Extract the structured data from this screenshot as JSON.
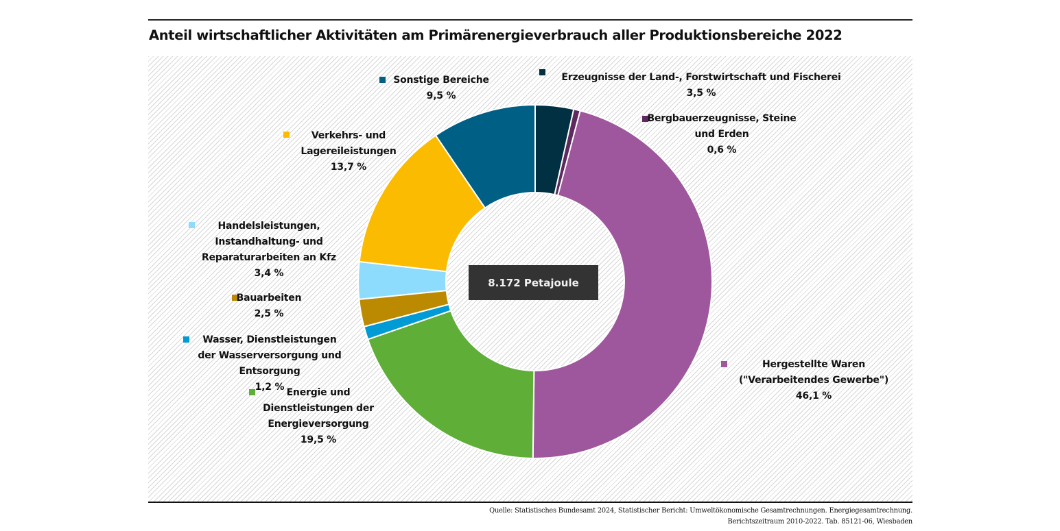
{
  "chart_data": {
    "type": "pie",
    "variant": "donut",
    "title": "Anteil wirtschaftlicher Aktivitäten am Primärenergieverbrauch aller Produktionsbereiche 2022",
    "center_label": "8.172 Petajoule",
    "unit": "%",
    "start": "top",
    "direction": "clockwise",
    "slices": [
      {
        "name": "Erzeugnisse der Land-, Forstwirtschaft und Fischerei",
        "value": 3.5,
        "value_label": "3,5 %",
        "color": "#003042"
      },
      {
        "name": "Bergbauerzeugnisse, Steine und Erden",
        "value": 0.6,
        "value_label": "0,6 %",
        "color": "#5f2960"
      },
      {
        "name": "Hergestellte Waren (\"Verarbeitendes Gewerbe\")",
        "value": 46.1,
        "value_label": "46,1 %",
        "color": "#9e579d"
      },
      {
        "name": "Energie und Dienstleistungen der Energieversorgung",
        "value": 19.5,
        "value_label": "19,5 %",
        "color": "#5eae38"
      },
      {
        "name": "Wasser, Dienstleistungen der Wasserversorgung und Entsorgung",
        "value": 1.2,
        "value_label": "1,2 %",
        "color": "#009bd4"
      },
      {
        "name": "Bauarbeiten",
        "value": 2.5,
        "value_label": "2,5 %",
        "color": "#bb8a00"
      },
      {
        "name": "Handelsleistungen, Instandhaltung- und Reparaturarbeiten an Kfz",
        "value": 3.4,
        "value_label": "3,4 %",
        "color": "#8ddcfe"
      },
      {
        "name": "Verkehrs- und Lagereileistungen",
        "value": 13.7,
        "value_label": "13,7 %",
        "color": "#fabb00"
      },
      {
        "name": "Sonstige Bereiche",
        "value": 9.5,
        "value_label": "9,5 %",
        "color": "#005f84"
      }
    ],
    "labels": [
      {
        "lines": [
          "Erzeugnisse der Land-, Forstwirtschaft und Fischerei",
          "3,5 %"
        ]
      },
      {
        "lines": [
          "Bergbauerzeugnisse, Steine",
          "und Erden",
          "0,6 %"
        ]
      },
      {
        "lines": [
          "Hergestellte Waren",
          "(\"Verarbeitendes Gewerbe\")",
          "46,1 %"
        ]
      },
      {
        "lines": [
          "Energie und",
          "Dienstleistungen der",
          "Energieversorgung",
          "19,5 %"
        ]
      },
      {
        "lines": [
          "Wasser, Dienstleistungen",
          "der Wasserversorgung und",
          "Entsorgung",
          "1,2 %"
        ]
      },
      {
        "lines": [
          "Bauarbeiten",
          "2,5 %"
        ]
      },
      {
        "lines": [
          "Handelsleistungen,",
          "Instandhaltung- und",
          "Reparaturarbeiten an Kfz",
          "3,4 %"
        ]
      },
      {
        "lines": [
          "Verkehrs- und",
          "Lagereileistungen",
          "13,7 %"
        ]
      },
      {
        "lines": [
          "Sonstige Bereiche",
          "9,5 %"
        ]
      }
    ],
    "background": "hatched"
  },
  "source": {
    "line1": "Quelle: Statistisches Bundesamt 2024, Statistischer Bericht: Umweltökonomische Gesamtrechnungen. Energiegesamtrechnung.",
    "line2": "Berichtszeitraum 2010-2022. Tab. 85121-06, Wiesbaden"
  }
}
